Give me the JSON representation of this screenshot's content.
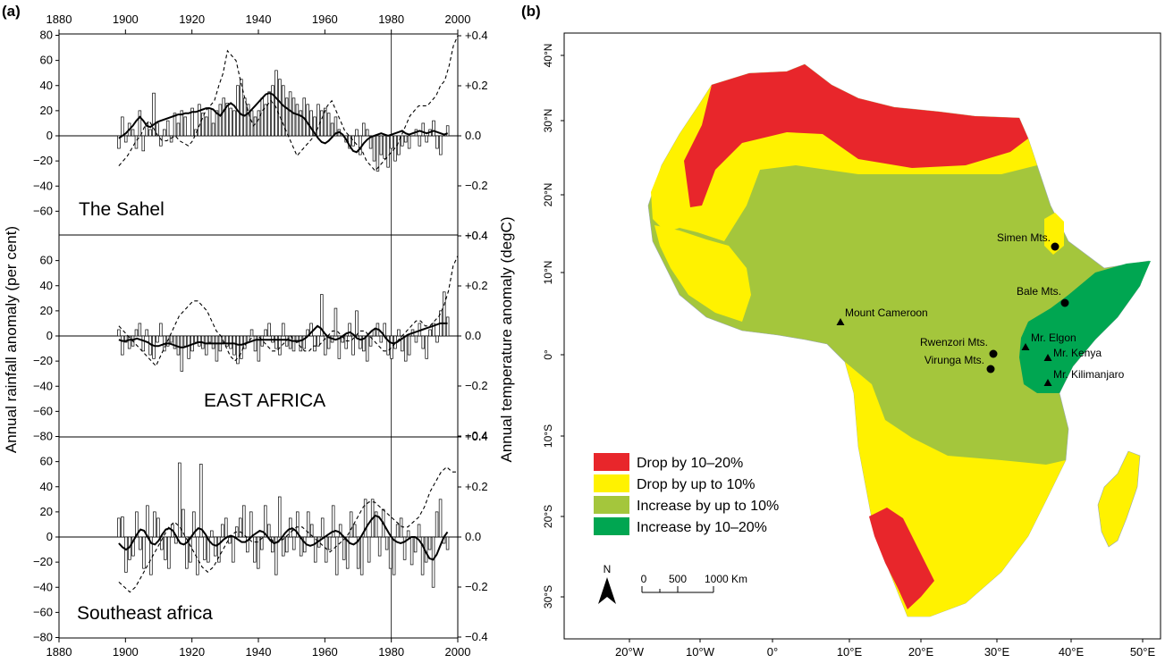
{
  "panel_a": {
    "label": "(a)",
    "ylabel_left": "Annual rainfall anomaly (per cent)",
    "ylabel_right": "Annual temperature anomaly (degC)",
    "x_ticks": [
      "1880",
      "1900",
      "1920",
      "1940",
      "1960",
      "1980",
      "2000"
    ],
    "y_ticks": [
      "60",
      "40",
      "20",
      "0",
      "−20",
      "−40",
      "−60",
      "−80"
    ],
    "top_y_ticks": [
      "80",
      "60",
      "40",
      "20",
      "0",
      "−20",
      "−40",
      "−60",
      "−80"
    ],
    "temp_ticks": [
      "+0.4",
      "+0.2",
      "0.0",
      "−0.2",
      "−0.4"
    ]
  },
  "panel_b": {
    "label": "(b)",
    "lat_ticks": [
      "40°N",
      "30°N",
      "20°N",
      "10°N",
      "0°",
      "10°S",
      "20°S",
      "30°S"
    ],
    "lon_ticks": [
      "20°W",
      "10°W",
      "0°",
      "10°E",
      "20°E",
      "30°E",
      "40°E",
      "50°E"
    ],
    "legend": [
      {
        "label": "Drop by 10–20%",
        "color": "#e8262b"
      },
      {
        "label": "Drop by up to 10%",
        "color": "#fff200"
      },
      {
        "label": "Increase by up to 10%",
        "color": "#a4c63c"
      },
      {
        "label": "Increase by 10–20%",
        "color": "#00a651"
      }
    ],
    "places": [
      {
        "name": "Simen Mts.",
        "marker": "circle"
      },
      {
        "name": "Bale Mts.",
        "marker": "circle"
      },
      {
        "name": "Mount Cameroon",
        "marker": "triangle"
      },
      {
        "name": "Mr. Elgon",
        "marker": "triangle"
      },
      {
        "name": "Rwenzori Mts.",
        "marker": "circle"
      },
      {
        "name": "Mr. Kenya",
        "marker": "triangle"
      },
      {
        "name": "Virunga Mts.",
        "marker": "circle"
      },
      {
        "name": "Mr. Kilimanjaro",
        "marker": "triangle"
      }
    ],
    "north": "N",
    "scale_labels": [
      "0",
      "500",
      "1000 Km"
    ]
  },
  "chart_data": [
    {
      "type": "bar",
      "title": "The Sahel",
      "xlim": [
        1880,
        2000
      ],
      "ylim": [
        -80,
        80
      ],
      "temp_ylim": [
        -0.4,
        0.4
      ],
      "x_start": 1898,
      "rainfall_anomaly": [
        -10,
        15,
        -5,
        10,
        5,
        -10,
        20,
        -12,
        10,
        5,
        34,
        10,
        -8,
        5,
        12,
        -5,
        18,
        10,
        20,
        15,
        0,
        22,
        5,
        25,
        18,
        15,
        22,
        10,
        20,
        25,
        30,
        26,
        22,
        20,
        40,
        45,
        30,
        25,
        20,
        15,
        20,
        30,
        25,
        35,
        40,
        52,
        45,
        40,
        30,
        35,
        30,
        25,
        20,
        30,
        25,
        20,
        15,
        25,
        20,
        22,
        18,
        10,
        15,
        5,
        0,
        -5,
        -10,
        -8,
        5,
        -15,
        10,
        5,
        -10,
        -20,
        -28,
        -15,
        -18,
        -25,
        -10,
        -20,
        -15,
        -8,
        -5,
        -10,
        0,
        5,
        -8,
        10,
        -5,
        5,
        12,
        -10,
        -15,
        0,
        8
      ],
      "rainfall_smooth": [
        -2,
        0,
        2,
        5,
        8,
        12,
        15,
        12,
        8,
        7,
        9,
        11,
        12,
        13,
        14,
        15,
        16,
        17,
        17,
        18,
        18,
        19,
        19,
        20,
        21,
        22,
        22,
        21,
        18,
        16,
        20,
        24,
        26,
        24,
        20,
        17,
        16,
        18,
        21,
        24,
        27,
        30,
        33,
        34,
        33,
        30,
        27,
        24,
        22,
        20,
        18,
        17,
        16,
        14,
        10,
        6,
        2,
        -2,
        -5,
        -6,
        -4,
        -1,
        2,
        3,
        1,
        -3,
        -8,
        -12,
        -13,
        -10,
        -6,
        -3,
        -1,
        0,
        1,
        2,
        1,
        0,
        1,
        2,
        3,
        4,
        2,
        1,
        2,
        3,
        4,
        3,
        2,
        3,
        4,
        3,
        2,
        1,
        2
      ],
      "temp_anomaly_degC": [
        -0.12,
        -0.1,
        -0.08,
        -0.05,
        -0.02,
        0,
        0.04,
        0.06,
        0.03,
        0,
        -0.02,
        -0.02,
        -0.01,
        0,
        -0.02,
        -0.03,
        -0.04,
        -0.02,
        0.02,
        0.06,
        0.1,
        0.12,
        0.14,
        0.2,
        0.25,
        0.34,
        0.32,
        0.3,
        0.22,
        0.15,
        0.08,
        0.04,
        0.06,
        0.1,
        0.12,
        0.14,
        0.12,
        0.08,
        0.04,
        0.0,
        -0.04,
        -0.08,
        -0.06,
        -0.04,
        -0.02,
        0,
        0.04,
        0.08,
        0.12,
        0.14,
        0.1,
        0.06,
        0.02,
        0,
        -0.02,
        -0.04,
        -0.06,
        -0.1,
        -0.12,
        -0.14,
        -0.12,
        -0.1,
        -0.08,
        -0.06,
        -0.04,
        0.0,
        0.04,
        0.08,
        0.1,
        0.12,
        0.12,
        0.12,
        0.14,
        0.16,
        0.2,
        0.22,
        0.28,
        0.36,
        0.4
      ]
    },
    {
      "type": "bar",
      "title": "EAST AFRICA",
      "xlim": [
        1880,
        2000
      ],
      "ylim": [
        -80,
        80
      ],
      "temp_ylim": [
        -0.4,
        0.4
      ],
      "x_start": 1898,
      "rainfall_anomaly": [
        5,
        -15,
        -5,
        -10,
        -8,
        5,
        10,
        -12,
        5,
        -15,
        -18,
        -5,
        10,
        -12,
        -8,
        -5,
        -10,
        -15,
        -28,
        -8,
        -18,
        -12,
        -5,
        -8,
        -10,
        -15,
        -5,
        -10,
        -20,
        -12,
        -5,
        -8,
        -10,
        -15,
        -22,
        -18,
        -10,
        -5,
        5,
        -12,
        -20,
        -8,
        5,
        10,
        -5,
        -10,
        -15,
        10,
        -8,
        -10,
        -12,
        -5,
        -12,
        -10,
        5,
        10,
        -12,
        -8,
        33,
        -15,
        -10,
        -5,
        22,
        -18,
        -5,
        -10,
        10,
        -15,
        20,
        -10,
        -12,
        -20,
        -8,
        5,
        10,
        -5,
        10,
        -15,
        -18,
        -10,
        5,
        -12,
        -20,
        -15,
        5,
        -5,
        10,
        -10,
        -18,
        5,
        10,
        -5,
        20,
        35,
        15
      ],
      "rainfall_smooth": [
        -3,
        -4,
        -4,
        -3,
        -3,
        -2,
        -3,
        -4,
        -5,
        -7,
        -8,
        -8,
        -7,
        -6,
        -6,
        -7,
        -8,
        -9,
        -9,
        -8,
        -7,
        -6,
        -5,
        -5,
        -6,
        -6,
        -6,
        -6,
        -6,
        -6,
        -6,
        -6,
        -6,
        -7,
        -7,
        -6,
        -5,
        -4,
        -3,
        -3,
        -3,
        -3,
        -3,
        -3,
        -3,
        -3,
        -3,
        -3,
        -4,
        -4,
        -4,
        -3,
        -1,
        2,
        5,
        8,
        6,
        2,
        -1,
        -2,
        -3,
        -2,
        0,
        2,
        3,
        1,
        -2,
        -3,
        -2,
        1,
        4,
        6,
        5,
        2,
        -2,
        -5,
        -6,
        -5,
        -3,
        -1,
        1,
        2,
        3,
        4,
        5,
        6,
        7,
        8,
        9,
        10,
        10,
        10
      ],
      "temp_anomaly_degC": [
        0.04,
        0.02,
        0.0,
        -0.02,
        -0.04,
        -0.06,
        -0.08,
        -0.1,
        -0.12,
        -0.08,
        -0.04,
        0.0,
        0.04,
        0.08,
        0.1,
        0.12,
        0.14,
        0.14,
        0.12,
        0.1,
        0.06,
        0.02,
        0.0,
        -0.04,
        -0.08,
        -0.1,
        -0.08,
        -0.04,
        -0.02,
        0.0,
        0.0,
        -0.02,
        -0.04,
        -0.06,
        -0.06,
        -0.04,
        -0.02,
        0.0,
        -0.02,
        -0.04,
        -0.06,
        -0.06,
        -0.04,
        -0.04,
        -0.02,
        0.0,
        0.02,
        0.02,
        0.0,
        -0.02,
        -0.02,
        0.0,
        0.02,
        0.02,
        0.0,
        -0.02,
        -0.04,
        -0.06,
        -0.06,
        -0.04,
        -0.02,
        0.0,
        0.02,
        0.04,
        0.06,
        0.06,
        0.04,
        0.04,
        0.06,
        0.08,
        0.12,
        0.18,
        0.28,
        0.32
      ]
    },
    {
      "type": "bar",
      "title": "Southeast africa",
      "xlim": [
        1880,
        2000
      ],
      "ylim": [
        -80,
        80
      ],
      "temp_ylim": [
        -0.4,
        0.4
      ],
      "x_start": 1898,
      "rainfall_anomaly": [
        15,
        16,
        -28,
        -18,
        -15,
        20,
        -10,
        -25,
        25,
        -30,
        20,
        15,
        -10,
        -18,
        -25,
        10,
        -5,
        59,
        22,
        -25,
        -20,
        20,
        -30,
        58,
        -18,
        -20,
        5,
        -15,
        -20,
        10,
        15,
        -5,
        -20,
        8,
        15,
        25,
        -12,
        20,
        -20,
        -25,
        -10,
        25,
        10,
        -12,
        -30,
        32,
        -15,
        -12,
        15,
        -10,
        20,
        -15,
        -12,
        20,
        10,
        -20,
        -8,
        15,
        -20,
        -10,
        25,
        -30,
        10,
        -18,
        -25,
        20,
        10,
        -25,
        -30,
        30,
        -20,
        30,
        20,
        -15,
        22,
        -10,
        -25,
        -30,
        10,
        15,
        -18,
        5,
        -22,
        -12,
        10,
        -30,
        -20,
        -10,
        -40,
        20,
        30,
        -5,
        -10
      ],
      "rainfall_smooth": [
        -5,
        -8,
        -10,
        -8,
        -3,
        2,
        6,
        5,
        0,
        -5,
        -6,
        -3,
        2,
        6,
        7,
        5,
        0,
        -5,
        -6,
        -4,
        0,
        4,
        7,
        6,
        2,
        -3,
        -6,
        -7,
        -5,
        -2,
        0,
        1,
        0,
        -2,
        -4,
        -4,
        -2,
        1,
        3,
        5,
        4,
        1,
        -3,
        -5,
        -4,
        -1,
        3,
        6,
        7,
        5,
        1,
        -3,
        -6,
        -7,
        -6,
        -4,
        -2,
        0,
        2,
        4,
        5,
        4,
        1,
        -2,
        -5,
        -6,
        -4,
        0,
        5,
        10,
        14,
        17,
        16,
        12,
        7,
        2,
        -2,
        -4,
        -5,
        -4,
        -2,
        0,
        0,
        -2,
        -6,
        -12,
        -17,
        -18,
        -14,
        -7,
        0,
        4
      ],
      "temp_anomaly_degC": [
        -0.18,
        -0.2,
        -0.22,
        -0.2,
        -0.16,
        -0.12,
        -0.08,
        -0.04,
        0.0,
        0.04,
        0.06,
        0.04,
        0.0,
        -0.04,
        -0.08,
        -0.12,
        -0.14,
        -0.12,
        -0.08,
        -0.04,
        0.0,
        0.02,
        0.02,
        0.0,
        -0.02,
        -0.02,
        0.0,
        0.0,
        -0.02,
        -0.02,
        0.0,
        0.02,
        0.04,
        0.04,
        0.02,
        0.0,
        -0.02,
        -0.04,
        -0.06,
        -0.04,
        -0.02,
        0.0,
        0.04,
        0.08,
        0.12,
        0.14,
        0.14,
        0.12,
        0.1,
        0.08,
        0.06,
        0.04,
        0.04,
        0.06,
        0.08,
        0.12,
        0.18,
        0.22,
        0.26,
        0.28,
        0.26,
        0.26
      ]
    }
  ]
}
